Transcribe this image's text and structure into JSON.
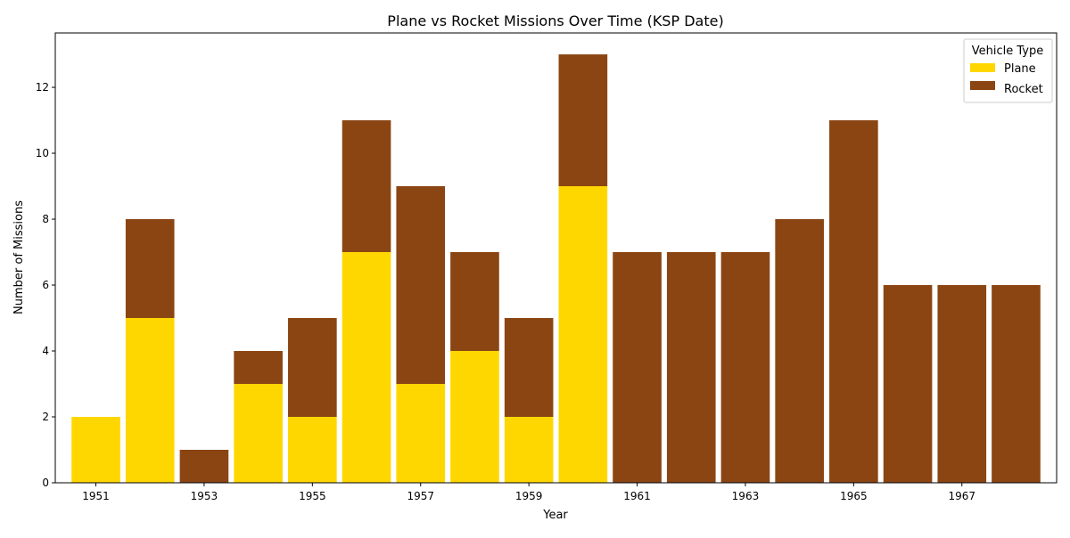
{
  "chart_data": {
    "type": "bar",
    "stacked": true,
    "title": "Plane vs Rocket Missions Over Time (KSP Date)",
    "xlabel": "Year",
    "ylabel": "Number of Missions",
    "categories": [
      1951,
      1952,
      1953,
      1954,
      1955,
      1956,
      1957,
      1958,
      1959,
      1960,
      1961,
      1962,
      1963,
      1964,
      1965,
      1966,
      1967,
      1968
    ],
    "x_tick_labels": [
      "1951",
      "1953",
      "1955",
      "1957",
      "1959",
      "1961",
      "1963",
      "1965",
      "1967"
    ],
    "y_ticks": [
      0,
      2,
      4,
      6,
      8,
      10,
      12
    ],
    "ylim": [
      0,
      13.65
    ],
    "grid": false,
    "legend": {
      "title": "Vehicle Type",
      "placement": "top-right"
    },
    "series": [
      {
        "name": "Plane",
        "color": "#FFD700",
        "values": [
          2,
          5,
          0,
          3,
          2,
          7,
          3,
          4,
          2,
          9,
          0,
          0,
          0,
          0,
          0,
          0,
          0,
          0
        ]
      },
      {
        "name": "Rocket",
        "color": "#8B4513",
        "values": [
          0,
          3,
          1,
          1,
          3,
          4,
          6,
          3,
          3,
          4,
          7,
          7,
          7,
          8,
          11,
          6,
          6,
          6
        ]
      }
    ]
  }
}
